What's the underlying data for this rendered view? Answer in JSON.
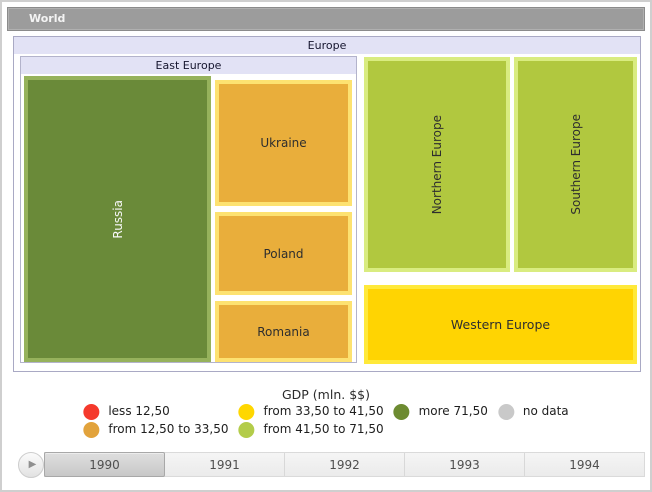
{
  "breadcrumb": {
    "label": "World"
  },
  "treemap": {
    "europe_header": "Europe",
    "east_europe_header": "East Europe",
    "nodes": {
      "russia": {
        "label": "Russia",
        "fill": "#6a8a39",
        "border": "#96b25c",
        "bin": "more 71,50"
      },
      "ukraine": {
        "label": "Ukraine",
        "fill": "#e9ae3b",
        "border": "#fde271",
        "bin": "from 12,50 to 33,50"
      },
      "poland": {
        "label": "Poland",
        "fill": "#e9ae3b",
        "border": "#fde271",
        "bin": "from 12,50 to 33,50"
      },
      "romania": {
        "label": "Romania",
        "fill": "#e9ae3b",
        "border": "#fde271",
        "bin": "from 12,50 to 33,50"
      },
      "northern": {
        "label": "Northern Europe",
        "fill": "#b1c83f",
        "border": "#d9ec80",
        "bin": "from 41,50 to 71,50"
      },
      "southern": {
        "label": "Southern Europe",
        "fill": "#b1c83f",
        "border": "#d9ec80",
        "bin": "from 41,50 to 71,50"
      },
      "western": {
        "label": "Western Europe",
        "fill": "#ffd402",
        "border": "#ffe93a",
        "bin": "from 33,50 to 41,50"
      }
    }
  },
  "legend": {
    "title": "GDP (mln. $$)",
    "items": [
      {
        "label": "less 12,50",
        "color": "#f5392c"
      },
      {
        "label": "from 12,50 to 33,50",
        "color": "#e2a33c"
      },
      {
        "label": "from 33,50 to 41,50",
        "color": "#ffd700"
      },
      {
        "label": "from 41,50 to 71,50",
        "color": "#b3cc4a"
      },
      {
        "label": "more 71,50",
        "color": "#6d8b31"
      },
      {
        "label": "no data",
        "color": "#c9c9c9"
      }
    ]
  },
  "timeline": {
    "play_icon": "▶",
    "years": [
      "1990",
      "1991",
      "1992",
      "1993",
      "1994"
    ],
    "selected_year": "1990"
  },
  "chart_data": {
    "type": "treemap",
    "title": "GDP (mln. $$)",
    "root": "World",
    "drilldown_path": [
      "World",
      "Europe"
    ],
    "tree": [
      {
        "name": "Europe",
        "children": [
          {
            "name": "East Europe",
            "children": [
              {
                "name": "Russia",
                "color_bin": "more 71,50"
              },
              {
                "name": "Ukraine",
                "color_bin": "from 12,50 to 33,50"
              },
              {
                "name": "Poland",
                "color_bin": "from 12,50 to 33,50"
              },
              {
                "name": "Romania",
                "color_bin": "from 12,50 to 33,50"
              }
            ]
          },
          {
            "name": "Northern Europe",
            "color_bin": "from 41,50 to 71,50"
          },
          {
            "name": "Southern Europe",
            "color_bin": "from 41,50 to 71,50"
          },
          {
            "name": "Western Europe",
            "color_bin": "from 33,50 to 41,50"
          }
        ]
      }
    ],
    "legend_title": "GDP (mln. $$)",
    "legend_bins": [
      "less 12,50",
      "from 12,50 to 33,50",
      "from 33,50 to 41,50",
      "from 41,50 to 71,50",
      "more 71,50",
      "no data"
    ],
    "legend_position": "bottom",
    "timeline_years": [
      "1990",
      "1991",
      "1992",
      "1993",
      "1994"
    ],
    "selected_year": "1990"
  }
}
